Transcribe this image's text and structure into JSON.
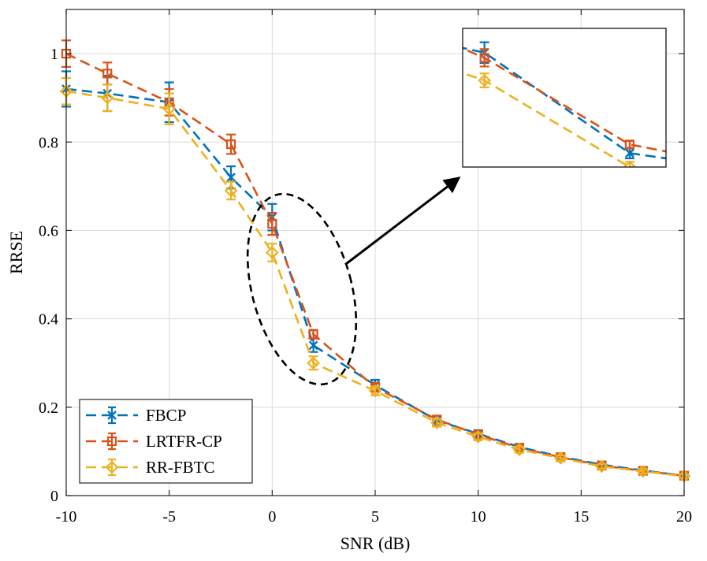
{
  "chart_data": {
    "type": "line",
    "title": "",
    "xlabel": "SNR (dB)",
    "ylabel": "RRSE",
    "xlim": [
      -10,
      20
    ],
    "ylim": [
      0,
      1.1
    ],
    "xticks": [
      -10,
      -5,
      0,
      5,
      10,
      15,
      20
    ],
    "yticks": [
      0,
      0.2,
      0.4,
      0.6,
      0.8,
      1
    ],
    "xtick_labels": [
      "-10",
      "-5",
      "0",
      "5",
      "10",
      "15",
      "20"
    ],
    "ytick_labels": [
      "0",
      "0.2",
      "0.4",
      "0.6",
      "0.8",
      "1"
    ],
    "grid": true,
    "legend_position": "bottom-left",
    "x": [
      -10,
      -8,
      -5,
      -2,
      0,
      2,
      5,
      8,
      10,
      12,
      14,
      16,
      18,
      20
    ],
    "series": [
      {
        "name": "FBCP",
        "color": "#0072BD",
        "marker": "x",
        "values": [
          0.92,
          0.91,
          0.89,
          0.72,
          0.63,
          0.34,
          0.25,
          0.17,
          0.14,
          0.11,
          0.088,
          0.07,
          0.057,
          0.045
        ],
        "errors": [
          0.04,
          0.04,
          0.045,
          0.025,
          0.03,
          0.015,
          0.012,
          0.01,
          0.008,
          0.007,
          0.006,
          0.005,
          0.005,
          0.004
        ]
      },
      {
        "name": "LRTFR-CP",
        "color": "#D95319",
        "marker": "square",
        "values": [
          1.0,
          0.955,
          0.89,
          0.795,
          0.615,
          0.365,
          0.245,
          0.172,
          0.138,
          0.108,
          0.087,
          0.068,
          0.056,
          0.045
        ],
        "errors": [
          0.03,
          0.025,
          0.03,
          0.022,
          0.025,
          0.01,
          0.01,
          0.009,
          0.008,
          0.007,
          0.006,
          0.005,
          0.005,
          0.004
        ]
      },
      {
        "name": "RR-FBTC",
        "color": "#EDB120",
        "marker": "diamond",
        "values": [
          0.915,
          0.9,
          0.875,
          0.69,
          0.55,
          0.3,
          0.237,
          0.165,
          0.133,
          0.104,
          0.085,
          0.066,
          0.055,
          0.044
        ],
        "errors": [
          0.03,
          0.03,
          0.035,
          0.02,
          0.02,
          0.015,
          0.01,
          0.009,
          0.008,
          0.007,
          0.006,
          0.005,
          0.005,
          0.004
        ]
      }
    ],
    "annotations": [
      {
        "type": "ellipse",
        "target_x": [
          0,
          2
        ],
        "dashed": true
      },
      {
        "type": "arrow",
        "points_to": "inset"
      },
      {
        "type": "inset",
        "x_range": [
          -0.3,
          2.5
        ],
        "y_range": [
          0.3,
          0.7
        ]
      }
    ]
  }
}
